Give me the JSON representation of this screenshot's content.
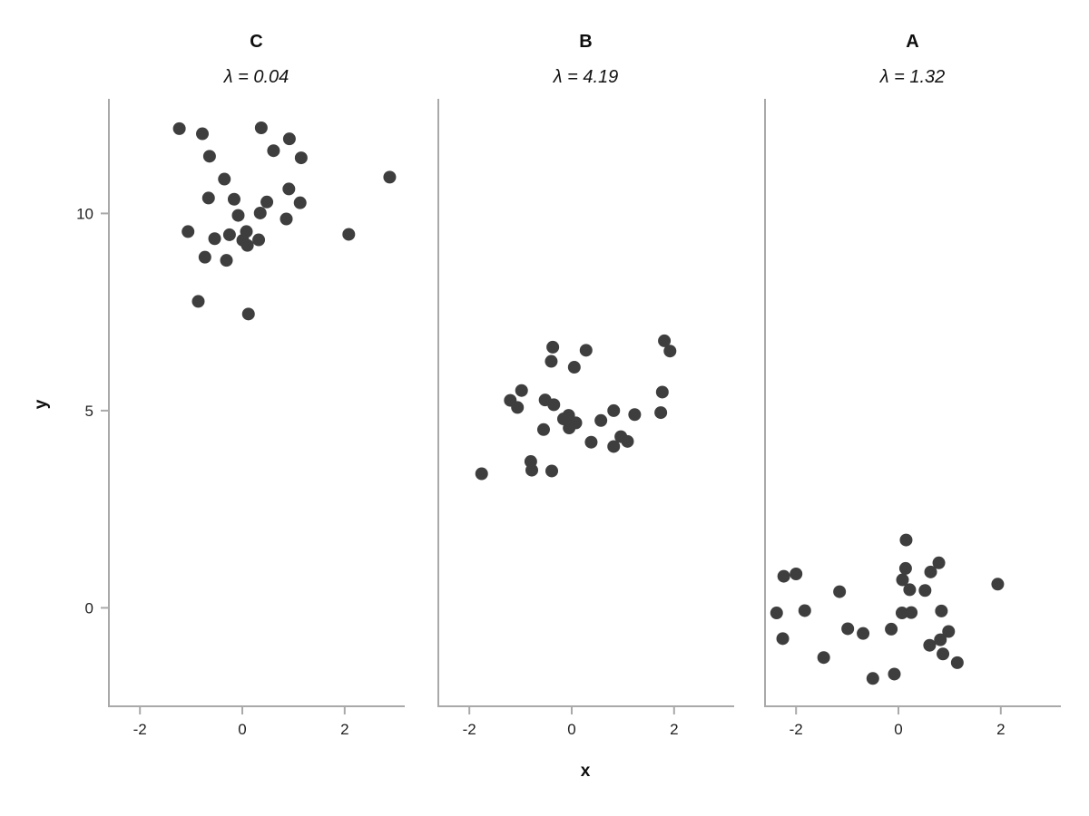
{
  "chart_data": {
    "type": "scatter",
    "title": "",
    "xlabel": "x",
    "ylabel": "y",
    "x_ticks": [
      -2,
      0,
      2
    ],
    "y_ticks": [
      10,
      5,
      0
    ],
    "xlim": [
      -2.62,
      3.17
    ],
    "ylim": [
      -2.51,
      12.91
    ],
    "grid": "off",
    "legend": "none",
    "point_color": "#3e3e3e",
    "axis_color": "#a9a9a9",
    "panels": [
      {
        "label": "C",
        "subtitle": "λ = 0.04",
        "lambda": 0.04,
        "points": [
          [
            -1.23,
            12.15
          ],
          [
            -0.78,
            12.02
          ],
          [
            0.37,
            12.17
          ],
          [
            0.92,
            11.89
          ],
          [
            0.61,
            11.59
          ],
          [
            1.15,
            11.41
          ],
          [
            -0.64,
            11.45
          ],
          [
            -0.35,
            10.87
          ],
          [
            2.88,
            10.92
          ],
          [
            0.91,
            10.62
          ],
          [
            -0.66,
            10.39
          ],
          [
            -0.16,
            10.36
          ],
          [
            0.48,
            10.29
          ],
          [
            1.13,
            10.27
          ],
          [
            -0.08,
            9.95
          ],
          [
            0.35,
            10.01
          ],
          [
            0.86,
            9.86
          ],
          [
            -1.06,
            9.54
          ],
          [
            -0.54,
            9.36
          ],
          [
            -0.25,
            9.46
          ],
          [
            0.08,
            9.54
          ],
          [
            0.01,
            9.32
          ],
          [
            0.1,
            9.19
          ],
          [
            0.32,
            9.33
          ],
          [
            2.08,
            9.47
          ],
          [
            -0.73,
            8.89
          ],
          [
            -0.31,
            8.81
          ],
          [
            -0.86,
            7.77
          ],
          [
            0.12,
            7.45
          ]
        ]
      },
      {
        "label": "B",
        "subtitle": "λ = 4.19",
        "lambda": 4.19,
        "points": [
          [
            -0.37,
            6.61
          ],
          [
            0.28,
            6.53
          ],
          [
            1.81,
            6.77
          ],
          [
            1.92,
            6.51
          ],
          [
            -0.4,
            6.25
          ],
          [
            0.05,
            6.1
          ],
          [
            -0.98,
            5.51
          ],
          [
            -1.2,
            5.26
          ],
          [
            -1.06,
            5.08
          ],
          [
            -0.52,
            5.27
          ],
          [
            -0.35,
            5.15
          ],
          [
            1.77,
            5.47
          ],
          [
            -0.06,
            4.88
          ],
          [
            -0.16,
            4.79
          ],
          [
            0.08,
            4.69
          ],
          [
            -0.05,
            4.56
          ],
          [
            0.57,
            4.75
          ],
          [
            0.82,
            5.0
          ],
          [
            1.23,
            4.9
          ],
          [
            1.74,
            4.95
          ],
          [
            -0.55,
            4.52
          ],
          [
            0.38,
            4.2
          ],
          [
            0.96,
            4.34
          ],
          [
            1.09,
            4.22
          ],
          [
            0.82,
            4.09
          ],
          [
            -0.8,
            3.71
          ],
          [
            -0.78,
            3.49
          ],
          [
            -0.39,
            3.47
          ],
          [
            -1.76,
            3.4
          ]
        ]
      },
      {
        "label": "A",
        "subtitle": "λ = 1.32",
        "lambda": 1.32,
        "points": [
          [
            0.15,
            1.72
          ],
          [
            0.79,
            1.14
          ],
          [
            -2.24,
            0.8
          ],
          [
            -2.0,
            0.86
          ],
          [
            0.14,
            1.0
          ],
          [
            0.63,
            0.91
          ],
          [
            0.08,
            0.71
          ],
          [
            1.94,
            0.6
          ],
          [
            -1.15,
            0.41
          ],
          [
            0.22,
            0.46
          ],
          [
            0.52,
            0.44
          ],
          [
            -2.38,
            -0.13
          ],
          [
            -1.83,
            -0.07
          ],
          [
            0.84,
            -0.08
          ],
          [
            0.07,
            -0.13
          ],
          [
            0.25,
            -0.12
          ],
          [
            -2.26,
            -0.78
          ],
          [
            -0.99,
            -0.53
          ],
          [
            -0.69,
            -0.65
          ],
          [
            -0.14,
            -0.54
          ],
          [
            0.98,
            -0.6
          ],
          [
            0.61,
            -0.95
          ],
          [
            0.82,
            -0.81
          ],
          [
            0.87,
            -1.17
          ],
          [
            -1.46,
            -1.26
          ],
          [
            1.15,
            -1.39
          ],
          [
            -0.5,
            -1.79
          ],
          [
            -0.08,
            -1.68
          ]
        ]
      }
    ]
  }
}
